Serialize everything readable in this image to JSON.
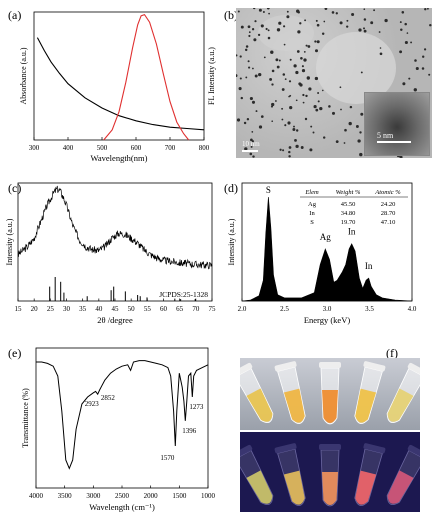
{
  "figure": {
    "panel_labels": [
      "(a)",
      "(b)",
      "(c)",
      "(d)",
      "(e)",
      "(f)"
    ]
  },
  "panel_a": {
    "chart_data": {
      "type": "line",
      "xlabel": "Wavelength(nm)",
      "ylabel_left": "Absorbance (a.u.)",
      "ylabel_right": "FL Intensity (a.u.)",
      "xlim": [
        300,
        800
      ],
      "x_ticks": [
        300,
        400,
        500,
        600,
        700,
        800
      ],
      "series": [
        {
          "color": "#000000",
          "x": [
            310,
            330,
            350,
            375,
            400,
            450,
            500,
            550,
            600,
            650,
            700,
            750,
            800
          ],
          "y": [
            0.8,
            0.7,
            0.61,
            0.52,
            0.44,
            0.33,
            0.25,
            0.19,
            0.15,
            0.12,
            0.1,
            0.09,
            0.08
          ]
        },
        {
          "color": "#e03030",
          "x": [
            505,
            530,
            550,
            570,
            590,
            605,
            615,
            625,
            640,
            660,
            680,
            700,
            720,
            740,
            755
          ],
          "y": [
            0.0,
            0.08,
            0.22,
            0.45,
            0.72,
            0.9,
            0.97,
            0.98,
            0.92,
            0.75,
            0.52,
            0.3,
            0.14,
            0.05,
            0.0
          ]
        }
      ]
    }
  },
  "panel_b": {
    "scale_main": "10 nm",
    "scale_inset": "5 nm"
  },
  "panel_c": {
    "chart_data": {
      "type": "line",
      "xlabel": "2θ /degree",
      "ylabel": "Intensity (a.u.)",
      "xlim": [
        15,
        75
      ],
      "x_ticks": [
        15,
        20,
        25,
        30,
        35,
        40,
        45,
        50,
        55,
        60,
        65,
        70,
        75
      ],
      "reference_label": "JCPDS:25-1328",
      "series": [
        {
          "color": "#000000",
          "x": [
            15,
            18,
            20,
            22,
            24,
            26,
            27,
            28,
            29,
            30,
            32,
            34,
            36,
            38,
            40,
            42,
            44,
            46,
            48,
            50,
            52,
            54,
            56,
            58,
            60,
            62,
            65,
            70,
            75
          ],
          "y": [
            0.2,
            0.3,
            0.4,
            0.6,
            0.8,
            0.95,
            1.0,
            0.98,
            0.9,
            0.8,
            0.55,
            0.38,
            0.3,
            0.26,
            0.25,
            0.3,
            0.4,
            0.46,
            0.45,
            0.4,
            0.34,
            0.26,
            0.2,
            0.16,
            0.13,
            0.12,
            0.1,
            0.08,
            0.07
          ]
        }
      ],
      "reference_peaks": [
        {
          "x": 24.8,
          "h": 0.6
        },
        {
          "x": 26.5,
          "h": 1.0
        },
        {
          "x": 28.2,
          "h": 0.8
        },
        {
          "x": 29.2,
          "h": 0.35
        },
        {
          "x": 36.4,
          "h": 0.2
        },
        {
          "x": 43.8,
          "h": 0.45
        },
        {
          "x": 44.6,
          "h": 0.6
        },
        {
          "x": 48.2,
          "h": 0.4
        },
        {
          "x": 52.0,
          "h": 0.25
        },
        {
          "x": 52.8,
          "h": 0.2
        },
        {
          "x": 54.9,
          "h": 0.15
        },
        {
          "x": 63.5,
          "h": 0.1
        },
        {
          "x": 65.3,
          "h": 0.08
        },
        {
          "x": 69.8,
          "h": 0.08
        }
      ]
    }
  },
  "panel_d": {
    "chart_data": {
      "type": "area",
      "xlabel": "Energy (keV)",
      "ylabel": "Intensity (a.u.)",
      "xlim": [
        2.0,
        4.0
      ],
      "x_ticks": [
        "2.0",
        "2.5",
        "3.0",
        "3.5",
        "4.0"
      ],
      "peak_labels": [
        {
          "text": "S",
          "x": 2.31,
          "y": 1.0
        },
        {
          "text": "Ag",
          "x": 2.98,
          "y": 0.55
        },
        {
          "text": "In",
          "x": 3.29,
          "y": 0.6
        },
        {
          "text": "In",
          "x": 3.49,
          "y": 0.27
        }
      ],
      "spectrum": {
        "x": [
          2.0,
          2.1,
          2.2,
          2.25,
          2.28,
          2.31,
          2.34,
          2.37,
          2.42,
          2.5,
          2.7,
          2.85,
          2.92,
          2.98,
          3.03,
          3.08,
          3.12,
          3.18,
          3.22,
          3.26,
          3.29,
          3.33,
          3.38,
          3.42,
          3.46,
          3.49,
          3.52,
          3.58,
          3.65,
          3.8,
          4.0
        ],
        "y": [
          0.0,
          0.01,
          0.05,
          0.2,
          0.65,
          1.0,
          0.7,
          0.25,
          0.06,
          0.03,
          0.03,
          0.08,
          0.35,
          0.5,
          0.4,
          0.18,
          0.2,
          0.28,
          0.35,
          0.5,
          0.55,
          0.48,
          0.22,
          0.12,
          0.2,
          0.22,
          0.14,
          0.06,
          0.03,
          0.01,
          0.0
        ]
      },
      "table": {
        "headers": [
          "Elem",
          "Weight %",
          "Atomic %"
        ],
        "rows": [
          [
            "Ag",
            "45.50",
            "24.20"
          ],
          [
            "In",
            "34.80",
            "28.70"
          ],
          [
            "S",
            "19.70",
            "47.10"
          ]
        ]
      }
    }
  },
  "panel_e": {
    "chart_data": {
      "type": "line",
      "xlabel": "Wavelength (cm⁻¹)",
      "ylabel": "Transmittance (%)",
      "xlim": [
        4000,
        1000
      ],
      "x_ticks": [
        4000,
        3500,
        3000,
        2500,
        2000,
        1500,
        1000
      ],
      "series": [
        {
          "color": "#000000",
          "x": [
            4000,
            3900,
            3800,
            3700,
            3620,
            3550,
            3480,
            3420,
            3360,
            3300,
            3200,
            3100,
            3000,
            2960,
            2923,
            2890,
            2852,
            2800,
            2700,
            2600,
            2500,
            2400,
            2350,
            2300,
            2200,
            2100,
            2000,
            1900,
            1800,
            1700,
            1650,
            1600,
            1570,
            1545,
            1500,
            1450,
            1420,
            1396,
            1370,
            1340,
            1300,
            1273,
            1250,
            1200,
            1100,
            1000
          ],
          "y": [
            0.9,
            0.9,
            0.89,
            0.87,
            0.8,
            0.55,
            0.2,
            0.14,
            0.2,
            0.42,
            0.6,
            0.65,
            0.68,
            0.69,
            0.67,
            0.7,
            0.73,
            0.77,
            0.82,
            0.85,
            0.87,
            0.88,
            0.84,
            0.9,
            0.91,
            0.91,
            0.9,
            0.89,
            0.88,
            0.86,
            0.8,
            0.55,
            0.3,
            0.55,
            0.82,
            0.72,
            0.62,
            0.48,
            0.62,
            0.8,
            0.82,
            0.65,
            0.8,
            0.84,
            0.86,
            0.88
          ]
        }
      ],
      "annotations": [
        {
          "text": "2923",
          "x": 2923,
          "y": 0.67
        },
        {
          "text": "2852",
          "x": 2852,
          "y": 0.73
        },
        {
          "text": "1570",
          "x": 1570,
          "y": 0.3
        },
        {
          "text": "1396",
          "x": 1396,
          "y": 0.48
        },
        {
          "text": "1273",
          "x": 1273,
          "y": 0.65
        }
      ]
    }
  },
  "panel_f": {
    "colors": {
      "tube_glow_top": [
        "#e8c24a",
        "#f0b43c",
        "#f08a28",
        "#f0c040",
        "#e6d070"
      ],
      "tube_glow_bottom": [
        "#d9d26a",
        "#f2c85a",
        "#ff9a5a",
        "#ff6a6a",
        "#e05a7a"
      ],
      "uv_background": "#1c1850"
    }
  }
}
